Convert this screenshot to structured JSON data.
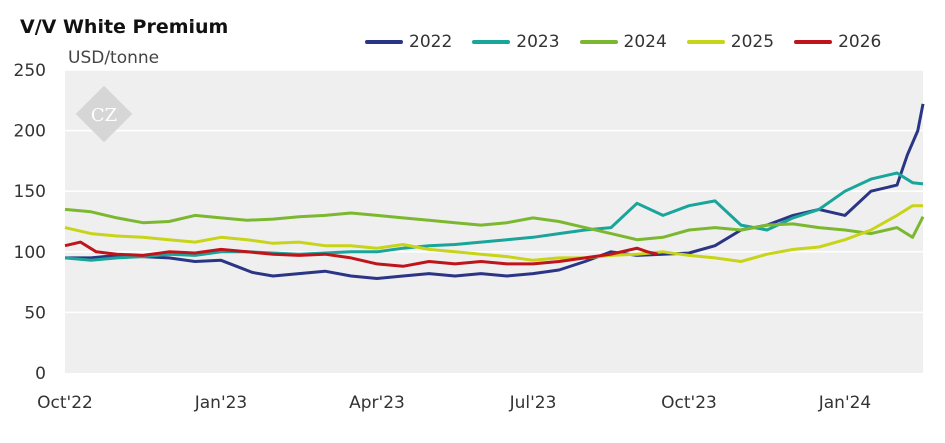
{
  "chart_data": {
    "type": "line",
    "title": "V/V White Premium",
    "ylabel": "USD/tonne",
    "xlabel": "",
    "ylim": [
      0,
      250
    ],
    "yticks": [
      0,
      50,
      100,
      150,
      200,
      250
    ],
    "x_ticks": [
      "Oct'22",
      "Jan'23",
      "Apr'23",
      "Jul'23",
      "Oct'23",
      "Jan'24"
    ],
    "x_tick_positions": [
      0,
      3,
      6,
      9,
      12,
      15
    ],
    "x_range": [
      0,
      16.5
    ],
    "grid": true,
    "legend_position": "top-right",
    "series": [
      {
        "name": "2022",
        "color": "#2b3585",
        "x": [
          0,
          0.5,
          1,
          1.5,
          2,
          2.5,
          3,
          3.3,
          3.6,
          4,
          4.5,
          5,
          5.5,
          6,
          6.5,
          7,
          7.5,
          8,
          8.5,
          9,
          9.5,
          10,
          10.5,
          11,
          11.5,
          12,
          12.5,
          13,
          13.5,
          14,
          14.5,
          15,
          15.5,
          16,
          16.2,
          16.4,
          16.5
        ],
        "values": [
          95,
          95,
          97,
          96,
          95,
          92,
          93,
          88,
          83,
          80,
          82,
          84,
          80,
          78,
          80,
          82,
          80,
          82,
          80,
          82,
          85,
          92,
          100,
          97,
          98,
          99,
          105,
          118,
          122,
          130,
          135,
          130,
          150,
          155,
          180,
          200,
          222
        ]
      },
      {
        "name": "2023",
        "color": "#1aa59a",
        "x": [
          0,
          0.5,
          1,
          1.5,
          2,
          2.5,
          3,
          3.5,
          4,
          4.5,
          5,
          5.5,
          6,
          6.5,
          7,
          7.5,
          8,
          8.5,
          9,
          9.5,
          10,
          10.5,
          11,
          11.5,
          12,
          12.5,
          13,
          13.5,
          14,
          14.5,
          15,
          15.5,
          16,
          16.3,
          16.5
        ],
        "values": [
          95,
          93,
          95,
          96,
          98,
          97,
          100,
          100,
          99,
          98,
          99,
          100,
          100,
          103,
          105,
          106,
          108,
          110,
          112,
          115,
          118,
          120,
          140,
          130,
          138,
          142,
          122,
          118,
          128,
          135,
          150,
          160,
          165,
          157,
          156
        ]
      },
      {
        "name": "2024",
        "color": "#7cb82f",
        "x": [
          0,
          0.5,
          1,
          1.5,
          2,
          2.5,
          3,
          3.5,
          4,
          4.5,
          5,
          5.5,
          6,
          6.5,
          7,
          7.5,
          8,
          8.5,
          9,
          9.5,
          10,
          10.5,
          11,
          11.5,
          12,
          12.5,
          13,
          13.5,
          14,
          14.5,
          15,
          15.5,
          16,
          16.3,
          16.5
        ],
        "values": [
          135,
          133,
          128,
          124,
          125,
          130,
          128,
          126,
          127,
          129,
          130,
          132,
          130,
          128,
          126,
          124,
          122,
          124,
          128,
          125,
          120,
          115,
          110,
          112,
          118,
          120,
          118,
          122,
          123,
          120,
          118,
          115,
          120,
          112,
          129
        ]
      },
      {
        "name": "2025",
        "color": "#c8d417",
        "x": [
          0,
          0.5,
          1,
          1.5,
          2,
          2.5,
          3,
          3.5,
          4,
          4.5,
          5,
          5.5,
          6,
          6.5,
          7,
          7.5,
          8,
          8.5,
          9,
          9.5,
          10,
          10.5,
          11,
          11.5,
          12,
          12.5,
          13,
          13.5,
          14,
          14.5,
          15,
          15.5,
          16,
          16.3,
          16.5
        ],
        "values": [
          120,
          115,
          113,
          112,
          110,
          108,
          112,
          110,
          107,
          108,
          105,
          105,
          103,
          106,
          102,
          100,
          98,
          96,
          93,
          95,
          95,
          97,
          98,
          100,
          97,
          95,
          92,
          98,
          102,
          104,
          110,
          118,
          130,
          138,
          138
        ]
      },
      {
        "name": "2026",
        "color": "#c0141c",
        "x": [
          0,
          0.3,
          0.6,
          1,
          1.5,
          2,
          2.5,
          3,
          3.5,
          4,
          4.5,
          5,
          5.5,
          6,
          6.5,
          7,
          7.5,
          8,
          8.5,
          9,
          9.5,
          10,
          10.5,
          11,
          11.2,
          11.4
        ],
        "values": [
          105,
          108,
          100,
          98,
          97,
          100,
          99,
          102,
          100,
          98,
          97,
          98,
          95,
          90,
          88,
          92,
          90,
          92,
          90,
          90,
          92,
          95,
          98,
          103,
          100,
          98
        ]
      }
    ]
  }
}
